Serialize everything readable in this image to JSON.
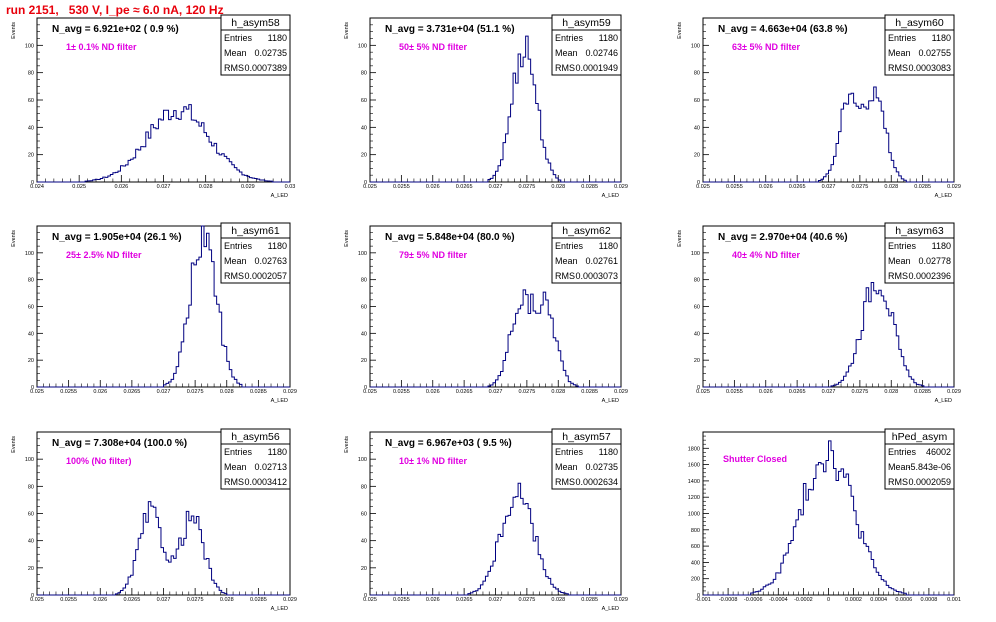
{
  "header": {
    "title": "run 2151,   530 V, I_pe ≈ 6.0 nA, 120 Hz"
  },
  "colors": {
    "histogram_line": "#000080",
    "annotation_magenta": "#e000e0",
    "title_red": "#e8000b"
  },
  "chart_data": [
    {
      "type": "bar",
      "name": "h_asym58",
      "ylabel": "Events",
      "xlabel": "A_LED",
      "xlim": [
        0.024,
        0.03
      ],
      "ylim": [
        0,
        120
      ],
      "xticks": [
        "0.024",
        "0.025",
        "0.026",
        "0.027",
        "0.028",
        "0.029",
        "0.03"
      ],
      "xtick_values": [
        0.024,
        0.025,
        0.026,
        0.027,
        0.028,
        0.029,
        0.03
      ],
      "yticks": [
        0,
        20,
        40,
        60,
        80,
        100
      ],
      "stats": [
        [
          "Entries",
          "1180"
        ],
        [
          "Mean",
          "0.02735"
        ],
        [
          "RMS",
          "0.0007389"
        ]
      ],
      "n_avg": "N_avg = 6.921e+02 ( 0.9 %)",
      "filter": "1± 0.1% ND filter",
      "mean": 0.02735,
      "rms": 0.0007389,
      "peak": 55
    },
    {
      "type": "bar",
      "name": "h_asym59",
      "ylabel": "Events",
      "xlabel": "A_LED",
      "xlim": [
        0.025,
        0.029
      ],
      "ylim": [
        0,
        120
      ],
      "xticks": [
        "0.025",
        "0.0255",
        "0.026",
        "0.0265",
        "0.027",
        "0.0275",
        "0.028",
        "0.0285",
        "0.029"
      ],
      "xtick_values": [
        0.025,
        0.0255,
        0.026,
        0.0265,
        0.027,
        0.0275,
        0.028,
        0.0285,
        0.029
      ],
      "yticks": [
        0,
        20,
        40,
        60,
        80,
        100
      ],
      "stats": [
        [
          "Entries",
          "1180"
        ],
        [
          "Mean",
          "0.02746"
        ],
        [
          "RMS",
          "0.0001949"
        ]
      ],
      "n_avg": "N_avg = 3.731e+04 (51.1 %)",
      "filter": "50± 5% ND filter",
      "mean": 0.02746,
      "rms": 0.0001949,
      "peak": 104
    },
    {
      "type": "bar",
      "name": "h_asym60",
      "ylabel": "Events",
      "xlabel": "A_LED",
      "xlim": [
        0.025,
        0.029
      ],
      "ylim": [
        0,
        120
      ],
      "xticks": [
        "0.025",
        "0.0255",
        "0.026",
        "0.0265",
        "0.027",
        "0.0275",
        "0.028",
        "0.0285",
        "0.029"
      ],
      "xtick_values": [
        0.025,
        0.0255,
        0.026,
        0.0265,
        0.027,
        0.0275,
        0.028,
        0.0285,
        0.029
      ],
      "yticks": [
        0,
        20,
        40,
        60,
        80,
        100
      ],
      "stats": [
        [
          "Entries",
          "1180"
        ],
        [
          "Mean",
          "0.02755"
        ],
        [
          "RMS",
          "0.0003083"
        ]
      ],
      "n_avg": "N_avg = 4.663e+04 (63.8 %)",
      "filter": "63± 5% ND filter",
      "mean": 0.02755,
      "rms": 0.0003083,
      "peak": 64,
      "bimodal": [
        0.02735,
        0.02775
      ]
    },
    {
      "type": "bar",
      "name": "h_asym61",
      "ylabel": "Events",
      "xlabel": "A_LED",
      "xlim": [
        0.025,
        0.029
      ],
      "ylim": [
        0,
        120
      ],
      "xticks": [
        "0.025",
        "0.0255",
        "0.026",
        "0.0265",
        "0.027",
        "0.0275",
        "0.028",
        "0.0285",
        "0.029"
      ],
      "xtick_values": [
        0.025,
        0.0255,
        0.026,
        0.0265,
        0.027,
        0.0275,
        0.028,
        0.0285,
        0.029
      ],
      "yticks": [
        0,
        20,
        40,
        60,
        80,
        100
      ],
      "stats": [
        [
          "Entries",
          "1180"
        ],
        [
          "Mean",
          "0.02763"
        ],
        [
          "RMS",
          "0.0002057"
        ]
      ],
      "n_avg": "N_avg = 1.905e+04 (26.1 %)",
      "filter": "25± 2.5% ND filter",
      "mean": 0.02763,
      "rms": 0.0002057,
      "peak": 118
    },
    {
      "type": "bar",
      "name": "h_asym62",
      "ylabel": "Events",
      "xlabel": "A_LED",
      "xlim": [
        0.025,
        0.029
      ],
      "ylim": [
        0,
        120
      ],
      "xticks": [
        "0.025",
        "0.0255",
        "0.026",
        "0.0265",
        "0.027",
        "0.0275",
        "0.028",
        "0.0285",
        "0.029"
      ],
      "xtick_values": [
        0.025,
        0.0255,
        0.026,
        0.0265,
        0.027,
        0.0275,
        0.028,
        0.0285,
        0.029
      ],
      "yticks": [
        0,
        20,
        40,
        60,
        80,
        100
      ],
      "stats": [
        [
          "Entries",
          "1180"
        ],
        [
          "Mean",
          "0.02761"
        ],
        [
          "RMS",
          "0.0003073"
        ]
      ],
      "n_avg": "N_avg = 5.848e+04 (80.0 %)",
      "filter": "79± 5% ND filter",
      "mean": 0.02761,
      "rms": 0.0003073,
      "peak": 64,
      "bimodal": [
        0.0274,
        0.0278
      ]
    },
    {
      "type": "bar",
      "name": "h_asym63",
      "ylabel": "Events",
      "xlabel": "A_LED",
      "xlim": [
        0.025,
        0.029
      ],
      "ylim": [
        0,
        120
      ],
      "xticks": [
        "0.025",
        "0.0255",
        "0.026",
        "0.0265",
        "0.027",
        "0.0275",
        "0.028",
        "0.0285",
        "0.029"
      ],
      "xtick_values": [
        0.025,
        0.0255,
        0.026,
        0.0265,
        0.027,
        0.0275,
        0.028,
        0.0285,
        0.029
      ],
      "yticks": [
        0,
        20,
        40,
        60,
        80,
        100
      ],
      "stats": [
        [
          "Entries",
          "1180"
        ],
        [
          "Mean",
          "0.02778"
        ],
        [
          "RMS",
          "0.0002396"
        ]
      ],
      "n_avg": "N_avg = 2.970e+04 (40.6 %)",
      "filter": "40± 4% ND filter",
      "mean": 0.02778,
      "rms": 0.0002396,
      "peak": 84
    },
    {
      "type": "bar",
      "name": "h_asym56",
      "ylabel": "Events",
      "xlabel": "A_LED",
      "xlim": [
        0.025,
        0.029
      ],
      "ylim": [
        0,
        120
      ],
      "xticks": [
        "0.025",
        "0.0255",
        "0.026",
        "0.0265",
        "0.027",
        "0.0275",
        "0.028",
        "0.0285",
        "0.029"
      ],
      "xtick_values": [
        0.025,
        0.0255,
        0.026,
        0.0265,
        0.027,
        0.0275,
        0.028,
        0.0285,
        0.029
      ],
      "yticks": [
        0,
        20,
        40,
        60,
        80,
        100
      ],
      "stats": [
        [
          "Entries",
          "1180"
        ],
        [
          "Mean",
          "0.02713"
        ],
        [
          "RMS",
          "0.0003412"
        ]
      ],
      "n_avg": "N_avg = 7.308e+04 (100.0 %)",
      "filter": "100% (No filter)",
      "mean": 0.02713,
      "rms": 0.0003412,
      "peak": 62,
      "bimodal": [
        0.0268,
        0.02745
      ]
    },
    {
      "type": "bar",
      "name": "h_asym57",
      "ylabel": "Events",
      "xlabel": "A_LED",
      "xlim": [
        0.025,
        0.029
      ],
      "ylim": [
        0,
        120
      ],
      "xticks": [
        "0.025",
        "0.0255",
        "0.026",
        "0.0265",
        "0.027",
        "0.0275",
        "0.028",
        "0.0285",
        "0.029"
      ],
      "xtick_values": [
        0.025,
        0.0255,
        0.026,
        0.0265,
        0.027,
        0.0275,
        0.028,
        0.0285,
        0.029
      ],
      "yticks": [
        0,
        20,
        40,
        60,
        80,
        100
      ],
      "stats": [
        [
          "Entries",
          "1180"
        ],
        [
          "Mean",
          "0.02735"
        ],
        [
          "RMS",
          "0.0002634"
        ]
      ],
      "n_avg": "N_avg = 6.967e+03 ( 9.5 %)",
      "filter": "10± 1% ND filter",
      "mean": 0.02735,
      "rms": 0.0002634,
      "peak": 77
    },
    {
      "type": "bar",
      "name": "hPed_asym",
      "ylabel": "",
      "xlabel": "",
      "xlim": [
        -0.001,
        0.001
      ],
      "ylim": [
        0,
        2000
      ],
      "xticks": [
        "-0.001",
        "-0.0008",
        "-0.0006",
        "-0.0004",
        "-0.0002",
        "0",
        "0.0002",
        "0.0004",
        "0.0006",
        "0.0008",
        "0.001"
      ],
      "xtick_values": [
        -0.001,
        -0.0008,
        -0.0006,
        -0.0004,
        -0.0002,
        0,
        0.0002,
        0.0004,
        0.0006,
        0.0008,
        0.001
      ],
      "yticks": [
        0,
        200,
        400,
        600,
        800,
        1000,
        1200,
        1400,
        1600,
        1800
      ],
      "stats": [
        [
          "Entries",
          "46002"
        ],
        [
          "Mean",
          "-5.843e-06"
        ],
        [
          "RMS",
          "0.0002059"
        ]
      ],
      "n_avg": "",
      "filter": "Shutter Closed",
      "mean": -5.843e-06,
      "rms": 0.0002059,
      "peak": 1830
    }
  ]
}
